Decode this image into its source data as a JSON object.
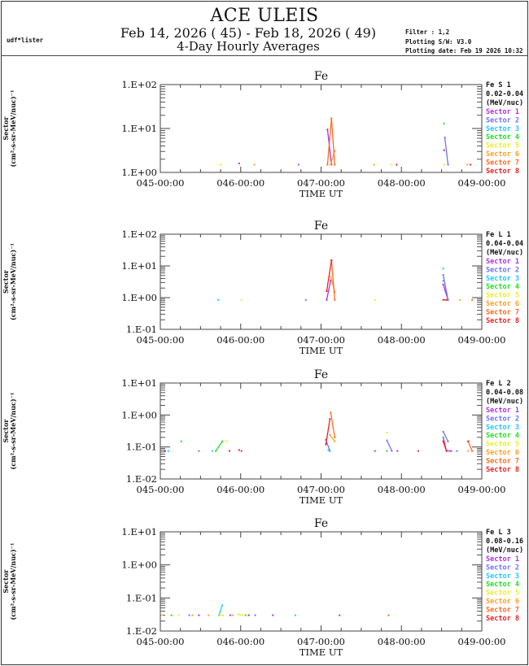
{
  "header": {
    "title": "ACE ULEIS",
    "date_range": "Feb 14, 2026 ( 45) - Feb 18, 2026 ( 49)",
    "subtitle": "4-Day Hourly Averages",
    "user": "udf*lister",
    "filter": "Filter : 1,2",
    "software": "Plotting S/W: V3.0",
    "plot_date": "Plotting date: Feb 19 2026 10:32"
  },
  "sector_colors": [
    "#b030e0",
    "#7070ff",
    "#20c8ff",
    "#20e020",
    "#e8f020",
    "#ffa020",
    "#ff6a20",
    "#ee2020"
  ],
  "chart_data": [
    {
      "type": "line",
      "title": "Fe",
      "xlabel": "TIME UT",
      "ylabel_line1": "Sector",
      "ylabel_line2": "(cm²-s-sr-MeV/nuc)⁻¹",
      "yscale": "log",
      "ylim": [
        1,
        100
      ],
      "ytick_labels": [
        "1.E+00",
        "1.E+01",
        "1.E+02"
      ],
      "xlim": [
        45,
        49
      ],
      "xtick_labels": [
        "045-00:00",
        "046-00:00",
        "047-00:00",
        "048-00:00",
        "049-00:00"
      ],
      "legend": {
        "title": "Fe S 1",
        "range": "0.02-0.04",
        "unit": "(MeV/nuc)",
        "position": "right",
        "entries": [
          "Sector 1",
          "Sector 2",
          "Sector 3",
          "Sector 4",
          "Sector 5",
          "Sector 6",
          "Sector 7",
          "Sector 8"
        ]
      },
      "series": [
        {
          "name": "Sector 1",
          "points": [
            [
              45.98,
              1.6
            ],
            [
              47.08,
              9.5
            ],
            [
              47.13,
              1.5
            ]
          ]
        },
        {
          "name": "Sector 2",
          "points": [
            [
              46.72,
              1.5
            ],
            [
              48.54,
              6.2
            ],
            [
              48.58,
              1.5
            ]
          ]
        },
        {
          "name": "Sector 3",
          "points": []
        },
        {
          "name": "Sector 4",
          "points": [
            [
              48.53,
              13
            ]
          ]
        },
        {
          "name": "Sector 5",
          "points": [
            [
              45.75,
              1.5
            ],
            [
              47.88,
              1.5
            ],
            [
              48.53,
              1.5
            ]
          ]
        },
        {
          "name": "Sector 6",
          "points": [
            [
              46.17,
              1.5
            ],
            [
              47.12,
              1.5
            ],
            [
              47.17,
              3.1
            ],
            [
              47.66,
              1.5
            ],
            [
              48.82,
              1.5
            ]
          ]
        },
        {
          "name": "Sector 7",
          "points": [
            [
              47.08,
              1.5
            ],
            [
              47.13,
              17
            ],
            [
              47.17,
              1.5
            ]
          ]
        },
        {
          "name": "Sector 8",
          "points": [
            [
              47.94,
              1.5
            ],
            [
              48.53,
              3.2
            ],
            [
              48.86,
              1.5
            ]
          ]
        }
      ]
    },
    {
      "type": "line",
      "title": "Fe",
      "xlabel": "TIME UT",
      "ylabel_line1": "Sector",
      "ylabel_line2": "(cm²-s-sr-MeV/nuc)⁻¹",
      "yscale": "log",
      "ylim": [
        0.1,
        100
      ],
      "ytick_labels": [
        "1.E-01",
        "1.E+00",
        "1.E+01",
        "1.E+02"
      ],
      "xlim": [
        45,
        49
      ],
      "xtick_labels": [
        "045-00:00",
        "046-00:00",
        "047-00:00",
        "048-00:00",
        "049-00:00"
      ],
      "legend": {
        "title": "Fe L 1",
        "range": "0.04-0.04",
        "unit": "(MeV/nuc)",
        "position": "right",
        "entries": [
          "Sector 1",
          "Sector 2",
          "Sector 3",
          "Sector 4",
          "Sector 5",
          "Sector 6",
          "Sector 7",
          "Sector 8"
        ]
      },
      "series": [
        {
          "name": "Sector 1",
          "points": [
            [
              47.07,
              0.85
            ],
            [
              47.12,
              3.5
            ],
            [
              48.52,
              2.6
            ],
            [
              48.58,
              0.85
            ]
          ]
        },
        {
          "name": "Sector 2",
          "points": [
            [
              46.81,
              0.85
            ],
            [
              48.52,
              5.2
            ],
            [
              48.58,
              0.85
            ]
          ]
        },
        {
          "name": "Sector 3",
          "points": [
            [
              45.72,
              0.85
            ],
            [
              48.52,
              8.2
            ]
          ]
        },
        {
          "name": "Sector 4",
          "points": [
            [
              48.52,
              3.4
            ]
          ]
        },
        {
          "name": "Sector 5",
          "points": [
            [
              46.01,
              0.85
            ],
            [
              47.67,
              0.85
            ]
          ]
        },
        {
          "name": "Sector 6",
          "points": [
            [
              47.12,
              4.5
            ],
            [
              47.17,
              1.5
            ],
            [
              48.73,
              0.85
            ]
          ]
        },
        {
          "name": "Sector 7",
          "points": [
            [
              47.13,
              15
            ],
            [
              47.17,
              0.85
            ],
            [
              48.88,
              0.85
            ]
          ]
        },
        {
          "name": "Sector 8",
          "points": [
            [
              47.07,
              1.6
            ],
            [
              47.13,
              15
            ],
            [
              48.52,
              0.85
            ],
            [
              48.56,
              0.85
            ]
          ]
        }
      ]
    },
    {
      "type": "line",
      "title": "Fe",
      "xlabel": "TIME UT",
      "ylabel_line1": "Sector",
      "ylabel_line2": "(cm²-s-sr-MeV/nuc)⁻¹",
      "yscale": "log",
      "ylim": [
        0.01,
        10
      ],
      "ytick_labels": [
        "1.E-02",
        "1.E-01",
        "1.E+00",
        "1.E+01"
      ],
      "xlim": [
        45,
        49
      ],
      "xtick_labels": [
        "045-00:00",
        "046-00:00",
        "047-00:00",
        "048-00:00",
        "049-00:00"
      ],
      "legend": {
        "title": "Fe L 2",
        "range": "0.04-0.08",
        "unit": "(MeV/nuc)",
        "position": "right",
        "entries": [
          "Sector 1",
          "Sector 2",
          "Sector 3",
          "Sector 4",
          "Sector 5",
          "Sector 6",
          "Sector 7",
          "Sector 8"
        ]
      },
      "series": [
        {
          "name": "Sector 1",
          "points": [
            [
              45.06,
              0.075
            ],
            [
              46.01,
              0.075
            ],
            [
              47.67,
              0.075
            ],
            [
              47.95,
              0.075
            ],
            [
              48.21,
              0.075
            ],
            [
              48.52,
              0.2
            ],
            [
              48.56,
              0.075
            ],
            [
              48.62,
              0.075
            ]
          ]
        },
        {
          "name": "Sector 2",
          "points": [
            [
              45.48,
              0.075
            ],
            [
              47.06,
              0.17
            ],
            [
              47.11,
              0.075
            ],
            [
              47.82,
              0.16
            ],
            [
              47.88,
              0.075
            ],
            [
              48.52,
              0.3
            ],
            [
              48.58,
              0.15
            ],
            [
              48.69,
              0.075
            ]
          ]
        },
        {
          "name": "Sector 3",
          "points": [
            [
              45.1,
              0.075
            ],
            [
              45.65,
              0.075
            ],
            [
              47.09,
              0.08
            ]
          ]
        },
        {
          "name": "Sector 4",
          "points": [
            [
              45.26,
              0.15
            ],
            [
              45.69,
              0.075
            ],
            [
              45.77,
              0.15
            ],
            [
              47.82,
              0.075
            ],
            [
              48.52,
              0.2
            ]
          ]
        },
        {
          "name": "Sector 5",
          "points": [
            [
              45.82,
              0.15
            ],
            [
              47.82,
              0.28
            ]
          ]
        },
        {
          "name": "Sector 6",
          "points": [
            [
              47.11,
              0.24
            ],
            [
              47.17,
              0.15
            ],
            [
              48.83,
              0.075
            ]
          ]
        },
        {
          "name": "Sector 7",
          "points": [
            [
              47.12,
              1.2
            ],
            [
              47.17,
              0.2
            ],
            [
              48.83,
              0.15
            ],
            [
              48.88,
              0.075
            ]
          ]
        },
        {
          "name": "Sector 8",
          "points": [
            [
              45.86,
              0.075
            ],
            [
              45.98,
              0.08
            ],
            [
              47.06,
              0.12
            ],
            [
              47.11,
              0.75
            ],
            [
              48.52,
              0.15
            ],
            [
              48.56,
              0.075
            ],
            [
              48.83,
              0.15
            ]
          ]
        }
      ]
    },
    {
      "type": "line",
      "title": "Fe",
      "xlabel": "TIME UT",
      "ylabel_line1": "Sector",
      "ylabel_line2": "(cm²-s-sr-MeV/nuc)⁻¹",
      "yscale": "log",
      "ylim": [
        0.01,
        10
      ],
      "ytick_labels": [
        "1.E-02",
        "1.E-01",
        "1.E+00",
        "1.E+01"
      ],
      "xlim": [
        45,
        49
      ],
      "xtick_labels": [
        "045-00:00",
        "046-00:00",
        "047-00:00",
        "048-00:00",
        "049-00:00"
      ],
      "legend": {
        "title": "Fe L 3",
        "range": "0.08-0.16",
        "unit": "(MeV/nuc)",
        "position": "right",
        "entries": [
          "Sector 1",
          "Sector 2",
          "Sector 3",
          "Sector 4",
          "Sector 5",
          "Sector 6",
          "Sector 7",
          "Sector 8"
        ]
      },
      "series": [
        {
          "name": "Sector 1",
          "points": [
            [
              45.48,
              0.03
            ],
            [
              45.87,
              0.03
            ],
            [
              46.4,
              0.03
            ],
            [
              47.23,
              0.03
            ]
          ]
        },
        {
          "name": "Sector 2",
          "points": [
            [
              45.36,
              0.03
            ],
            [
              46.18,
              0.03
            ]
          ]
        },
        {
          "name": "Sector 3",
          "points": [
            [
              45.73,
              0.03
            ],
            [
              45.77,
              0.06
            ],
            [
              46.68,
              0.03
            ]
          ]
        },
        {
          "name": "Sector 4",
          "points": [
            [
              45.14,
              0.03
            ],
            [
              46.06,
              0.03
            ]
          ]
        },
        {
          "name": "Sector 5",
          "points": [
            [
              45.02,
              0.03
            ],
            [
              45.23,
              0.03
            ],
            [
              45.74,
              0.03
            ],
            [
              45.78,
              0.03
            ],
            [
              45.97,
              0.032
            ],
            [
              46.02,
              0.03
            ]
          ]
        },
        {
          "name": "Sector 6",
          "points": [
            [
              45.4,
              0.03
            ],
            [
              45.6,
              0.03
            ],
            [
              45.9,
              0.03
            ]
          ]
        },
        {
          "name": "Sector 7",
          "points": [
            [
              47.84,
              0.03
            ]
          ]
        },
        {
          "name": "Sector 8",
          "points": [
            [
              46.1,
              0.03
            ]
          ]
        }
      ]
    }
  ]
}
